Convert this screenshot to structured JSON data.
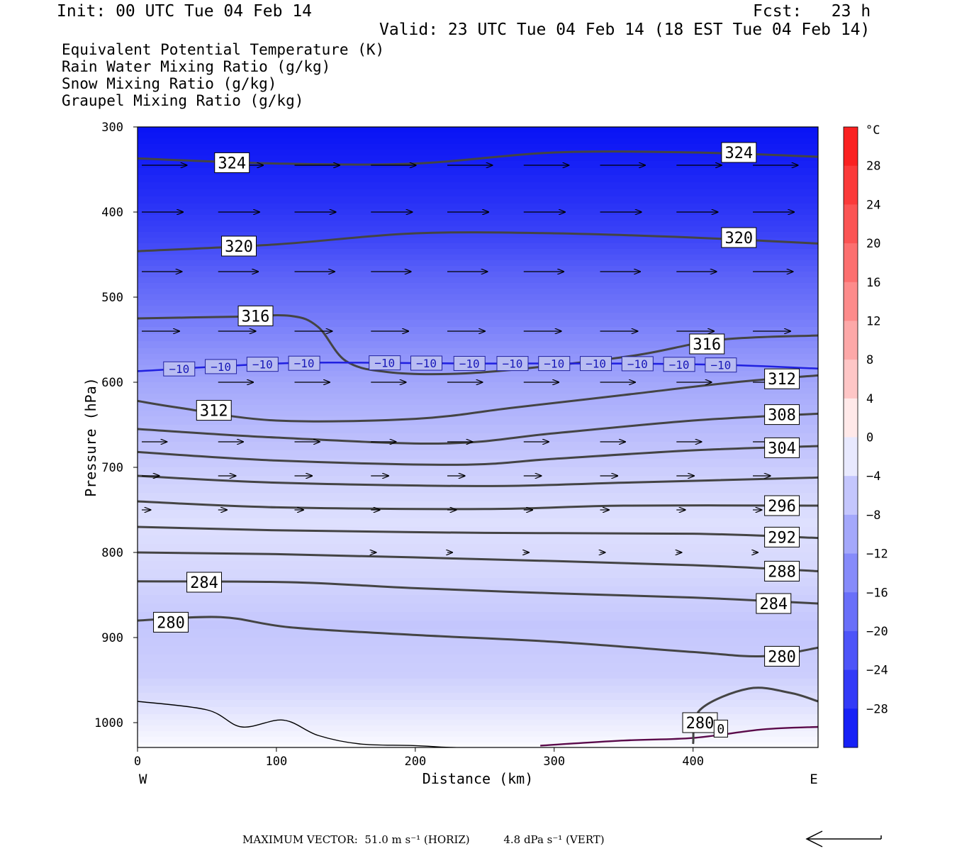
{
  "header": {
    "init": "Init: 00 UTC Tue 04 Feb 14",
    "fcst": "Fcst:   23 h",
    "valid": "Valid: 23 UTC Tue 04 Feb 14 (18 EST Tue 04 Feb 14)"
  },
  "fields": [
    {
      "label": "Equivalent Potential Temperature (K)",
      "color": "#444444"
    },
    {
      "label": "Rain Water Mixing Ratio (g/kg)",
      "color": "#1a7a1a"
    },
    {
      "label": "Snow Mixing Ratio (g/kg)",
      "color": "#f08a4b"
    },
    {
      "label": "Graupel Mixing Ratio (g/kg)",
      "color": "#ef7fef"
    }
  ],
  "chart_data": {
    "type": "heatmap",
    "xlabel": "Distance (km)",
    "ylabel": "Pressure (hPa)",
    "xlim": [
      0,
      490
    ],
    "ylim": [
      1030,
      300
    ],
    "x_ticks": [
      0,
      100,
      200,
      300,
      400
    ],
    "y_ticks": [
      300,
      400,
      500,
      600,
      700,
      800,
      900,
      1000
    ],
    "x_end_labels": {
      "left": "W",
      "right": "E"
    },
    "colorbar": {
      "unit": "°C",
      "tick_labels": [
        "28",
        "24",
        "20",
        "16",
        "12",
        "8",
        "4",
        "0",
        "−4",
        "−8",
        "−12",
        "−16",
        "−20",
        "−24",
        "−28"
      ],
      "range": [
        -32,
        32
      ],
      "step": 4,
      "cold_color": "#0a14f5",
      "warm_color": "#fa1414",
      "neutral_color": "#ffffff"
    },
    "temperature_background": [
      {
        "p": 300,
        "t": -32
      },
      {
        "p": 340,
        "t": -30
      },
      {
        "p": 390,
        "t": -27
      },
      {
        "p": 430,
        "t": -24
      },
      {
        "p": 470,
        "t": -20
      },
      {
        "p": 510,
        "t": -17
      },
      {
        "p": 560,
        "t": -13
      },
      {
        "p": 600,
        "t": -10
      },
      {
        "p": 640,
        "t": -8
      },
      {
        "p": 700,
        "t": -5
      },
      {
        "p": 760,
        "t": -3
      },
      {
        "p": 820,
        "t": -4
      },
      {
        "p": 880,
        "t": -6
      },
      {
        "p": 940,
        "t": -5
      },
      {
        "p": 990,
        "t": -2
      },
      {
        "p": 1030,
        "t": 0
      }
    ],
    "theta_e_contours": [
      {
        "value": 324,
        "color": "#444444",
        "points": [
          [
            0,
            337
          ],
          [
            100,
            343
          ],
          [
            200,
            343
          ],
          [
            300,
            330
          ],
          [
            400,
            330
          ],
          [
            490,
            335
          ]
        ],
        "labels": [
          {
            "text": "324",
            "x": 68,
            "p": 342
          },
          {
            "text": "324",
            "x": 433,
            "p": 330
          }
        ]
      },
      {
        "value": 320,
        "color": "#444444",
        "points": [
          [
            0,
            446
          ],
          [
            100,
            438
          ],
          [
            200,
            425
          ],
          [
            300,
            425
          ],
          [
            400,
            430
          ],
          [
            490,
            437
          ]
        ],
        "labels": [
          {
            "text": "320",
            "x": 73,
            "p": 440
          },
          {
            "text": "320",
            "x": 433,
            "p": 430
          }
        ]
      },
      {
        "value": 316,
        "color": "#444444",
        "points": [
          [
            0,
            525
          ],
          [
            70,
            523
          ],
          [
            110,
            522
          ],
          [
            130,
            535
          ],
          [
            150,
            575
          ],
          [
            180,
            588
          ],
          [
            230,
            590
          ],
          [
            290,
            582
          ],
          [
            360,
            568
          ],
          [
            420,
            550
          ],
          [
            490,
            545
          ]
        ],
        "labels": [
          {
            "text": "316",
            "x": 85,
            "p": 522
          },
          {
            "text": "316",
            "x": 410,
            "p": 555
          }
        ]
      },
      {
        "value": 312,
        "color": "#444444",
        "points": [
          [
            0,
            622
          ],
          [
            30,
            630
          ],
          [
            100,
            645
          ],
          [
            200,
            643
          ],
          [
            270,
            630
          ],
          [
            350,
            615
          ],
          [
            430,
            600
          ],
          [
            490,
            592
          ]
        ],
        "labels": [
          {
            "text": "312",
            "x": 55,
            "p": 633
          },
          {
            "text": "312",
            "x": 464,
            "p": 596
          }
        ]
      },
      {
        "value": 308,
        "color": "#444444",
        "points": [
          [
            0,
            655
          ],
          [
            100,
            665
          ],
          [
            220,
            672
          ],
          [
            300,
            660
          ],
          [
            400,
            645
          ],
          [
            490,
            637
          ]
        ],
        "labels": [
          {
            "text": "308",
            "x": 464,
            "p": 638
          }
        ]
      },
      {
        "value": 304,
        "color": "#444444",
        "points": [
          [
            0,
            682
          ],
          [
            100,
            692
          ],
          [
            230,
            697
          ],
          [
            300,
            690
          ],
          [
            400,
            680
          ],
          [
            490,
            675
          ]
        ],
        "labels": [
          {
            "text": "304",
            "x": 464,
            "p": 677
          }
        ]
      },
      {
        "value": 300,
        "color": "#444444",
        "points": [
          [
            0,
            710
          ],
          [
            100,
            718
          ],
          [
            250,
            722
          ],
          [
            350,
            718
          ],
          [
            490,
            712
          ]
        ],
        "labels": []
      },
      {
        "value": 296,
        "color": "#444444",
        "points": [
          [
            0,
            740
          ],
          [
            100,
            747
          ],
          [
            250,
            749
          ],
          [
            350,
            745
          ],
          [
            490,
            745
          ]
        ],
        "labels": [
          {
            "text": "296",
            "x": 464,
            "p": 745
          }
        ]
      },
      {
        "value": 292,
        "color": "#444444",
        "points": [
          [
            0,
            770
          ],
          [
            100,
            774
          ],
          [
            250,
            777
          ],
          [
            400,
            778
          ],
          [
            490,
            783
          ]
        ],
        "labels": [
          {
            "text": "292",
            "x": 464,
            "p": 782
          }
        ]
      },
      {
        "value": 288,
        "color": "#444444",
        "points": [
          [
            0,
            800
          ],
          [
            100,
            802
          ],
          [
            250,
            808
          ],
          [
            400,
            815
          ],
          [
            490,
            822
          ]
        ],
        "labels": [
          {
            "text": "288",
            "x": 464,
            "p": 822
          }
        ]
      },
      {
        "value": 284,
        "color": "#444444",
        "points": [
          [
            0,
            834
          ],
          [
            110,
            835
          ],
          [
            200,
            842
          ],
          [
            300,
            848
          ],
          [
            400,
            853
          ],
          [
            490,
            860
          ]
        ],
        "labels": [
          {
            "text": "284",
            "x": 48,
            "p": 835
          },
          {
            "text": "284",
            "x": 458,
            "p": 860
          }
        ]
      },
      {
        "value": 280,
        "color": "#444444",
        "points": [
          [
            0,
            880
          ],
          [
            60,
            876
          ],
          [
            110,
            888
          ],
          [
            200,
            897
          ],
          [
            300,
            905
          ],
          [
            400,
            917
          ],
          [
            450,
            922
          ],
          [
            490,
            912
          ]
        ],
        "labels": [
          {
            "text": "280",
            "x": 24,
            "p": 882
          },
          {
            "text": "280",
            "x": 464,
            "p": 922
          }
        ]
      },
      {
        "value": 280,
        "color": "#444444",
        "points": [
          [
            400,
            1025
          ],
          [
            405,
            985
          ],
          [
            440,
            960
          ],
          [
            470,
            965
          ],
          [
            490,
            975
          ]
        ],
        "labels": [
          {
            "text": "280",
            "x": 405,
            "p": 1000
          }
        ]
      }
    ],
    "isotherm": {
      "value": -10,
      "color": "#2020e0",
      "points": [
        [
          0,
          587
        ],
        [
          100,
          578
        ],
        [
          160,
          577
        ],
        [
          250,
          578
        ],
        [
          350,
          578
        ],
        [
          430,
          580
        ],
        [
          490,
          584
        ]
      ],
      "labels": [
        {
          "text": "−10",
          "x": 30
        },
        {
          "text": "−10",
          "x": 60
        },
        {
          "text": "−10",
          "x": 90
        },
        {
          "text": "−10",
          "x": 120
        },
        {
          "text": "−10",
          "x": 178
        },
        {
          "text": "−10",
          "x": 208
        },
        {
          "text": "−10",
          "x": 239
        },
        {
          "text": "−10",
          "x": 270
        },
        {
          "text": "−10",
          "x": 300
        },
        {
          "text": "−10",
          "x": 330
        },
        {
          "text": "−10",
          "x": 360
        },
        {
          "text": "−10",
          "x": 390
        },
        {
          "text": "−10",
          "x": 420
        }
      ]
    },
    "ground_contour": {
      "color": "#000000",
      "points": [
        [
          0,
          975
        ],
        [
          50,
          985
        ],
        [
          75,
          1005
        ],
        [
          105,
          997
        ],
        [
          130,
          1015
        ],
        [
          160,
          1025
        ],
        [
          200,
          1027
        ],
        [
          260,
          1030
        ],
        [
          490,
          1030
        ]
      ]
    },
    "snow_contour": {
      "color": "#5a0a4a",
      "points": [
        [
          290,
          1027
        ],
        [
          350,
          1021
        ],
        [
          400,
          1018
        ],
        [
          450,
          1008
        ],
        [
          490,
          1005
        ]
      ],
      "label": {
        "text": "0",
        "x": 420,
        "p": 1007
      }
    },
    "wind_vectors": {
      "rows": [
        {
          "p": 345,
          "xs": [
            0,
            55,
            110,
            165,
            220,
            275,
            330,
            385,
            440
          ],
          "len": 36
        },
        {
          "p": 400,
          "xs": [
            0,
            55,
            110,
            165,
            220,
            275,
            330,
            385,
            440
          ],
          "len": 33
        },
        {
          "p": 470,
          "xs": [
            0,
            55,
            110,
            165,
            220,
            275,
            330,
            385,
            440
          ],
          "len": 32
        },
        {
          "p": 540,
          "xs": [
            0,
            55,
            110,
            165,
            220,
            275,
            330,
            385,
            440
          ],
          "len": 30
        },
        {
          "p": 600,
          "xs": [
            55,
            110,
            165,
            220,
            275,
            330,
            385,
            440
          ],
          "len": 28
        },
        {
          "p": 670,
          "xs": [
            0,
            55,
            110,
            165,
            220,
            275,
            330,
            385,
            440
          ],
          "len": 20
        },
        {
          "p": 710,
          "xs": [
            0,
            55,
            110,
            165,
            220,
            275,
            330,
            385,
            440
          ],
          "len": 14
        },
        {
          "p": 750,
          "xs": [
            0,
            55,
            110,
            165,
            220,
            275,
            330,
            385,
            440
          ],
          "len": 7
        },
        {
          "p": 800,
          "xs": [
            165,
            220,
            275,
            330,
            385,
            440
          ],
          "len": 4
        }
      ]
    }
  },
  "footer": {
    "max_vector": "MAXIMUM VECTOR:  51.0 m s⁻¹ (HORIZ)          4.8 dPa s⁻¹ (VERT)"
  }
}
